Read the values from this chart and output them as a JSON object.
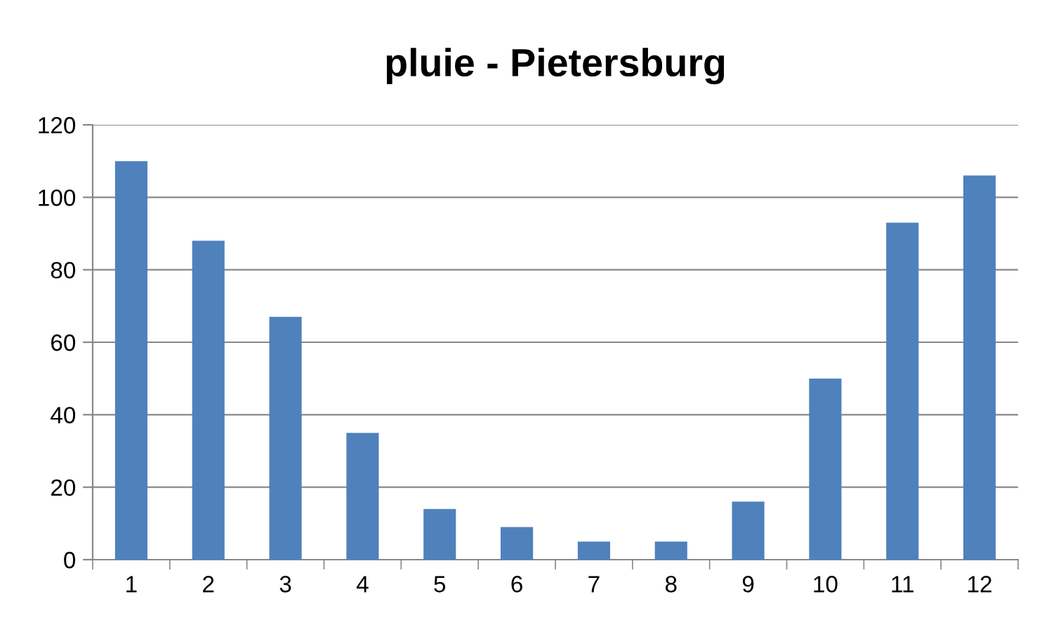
{
  "chart_data": {
    "type": "bar",
    "title": "pluie - Pietersburg",
    "categories": [
      "1",
      "2",
      "3",
      "4",
      "5",
      "6",
      "7",
      "8",
      "9",
      "10",
      "11",
      "12"
    ],
    "values": [
      110,
      88,
      67,
      35,
      14,
      9,
      5,
      5,
      16,
      50,
      93,
      106
    ],
    "color": "#4f81bd",
    "ylim": [
      0,
      120
    ],
    "yticks": [
      0,
      20,
      40,
      60,
      80,
      100,
      120
    ],
    "grid": "y",
    "legend": false
  }
}
